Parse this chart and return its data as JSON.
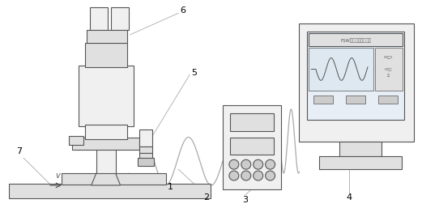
{
  "bg_color": "#ffffff",
  "lc": "#555555",
  "fc_light": "#f0f0f0",
  "fc_mid": "#e0e0e0",
  "fc_dark": "#cccccc",
  "fc_screen": "#e8eef5",
  "cable_color": "#aaaaaa",
  "label_color": "#000000",
  "fig_width": 5.21,
  "fig_height": 2.57,
  "dpi": 100,
  "monitor_title": "FSW焊缝在线检测系统",
  "monitor_right1": "CH通道1",
  "monitor_right2": "CH触发 录波"
}
